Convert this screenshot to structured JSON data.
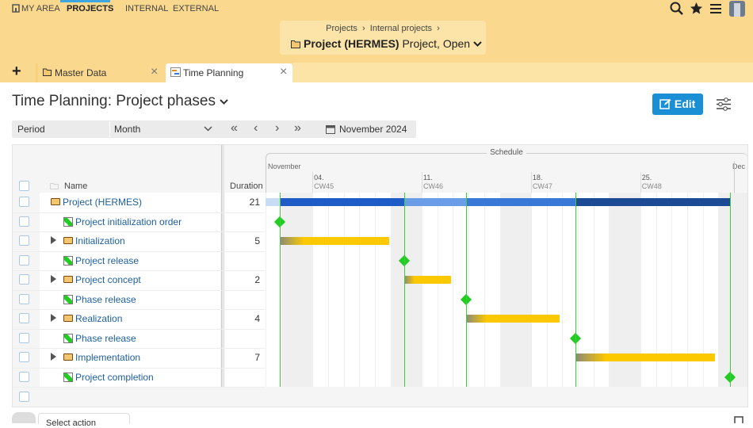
{
  "nav": {
    "items": [
      "MY AREA",
      "PROJECTS",
      "INTERNAL",
      "EXTERNAL"
    ]
  },
  "breadcrumb": {
    "path": [
      "Projects",
      "Internal projects"
    ],
    "title": "Project (HERMES)",
    "subtitle": "Project, Open"
  },
  "tabs": [
    "Master Data",
    "Time Planning"
  ],
  "page": {
    "title": "Time Planning: Project phases",
    "edit": "Edit"
  },
  "toolbar": {
    "period_label": "Period",
    "period_value": "Month",
    "date": "November 2024"
  },
  "gantt": {
    "header": {
      "name": "Name",
      "duration": "Duration",
      "schedule": "Schedule",
      "months": [
        "November",
        "Dec"
      ],
      "weeks": [
        {
          "day": "04.",
          "cw": "CW45"
        },
        {
          "day": "11.",
          "cw": "CW46"
        },
        {
          "day": "18.",
          "cw": "CW47"
        },
        {
          "day": "25.",
          "cw": "CW48"
        }
      ]
    },
    "rows": [
      {
        "name": "Project (HERMES)",
        "duration": 21
      },
      {
        "name": "Project initialization order"
      },
      {
        "name": "Initialization",
        "duration": 5
      },
      {
        "name": "Project release"
      },
      {
        "name": "Project concept",
        "duration": 2
      },
      {
        "name": "Phase release"
      },
      {
        "name": "Realization",
        "duration": 4
      },
      {
        "name": "Phase release"
      },
      {
        "name": "Implementation",
        "duration": 7
      },
      {
        "name": "Project completion"
      }
    ]
  },
  "footer": {
    "action": "Select action"
  }
}
